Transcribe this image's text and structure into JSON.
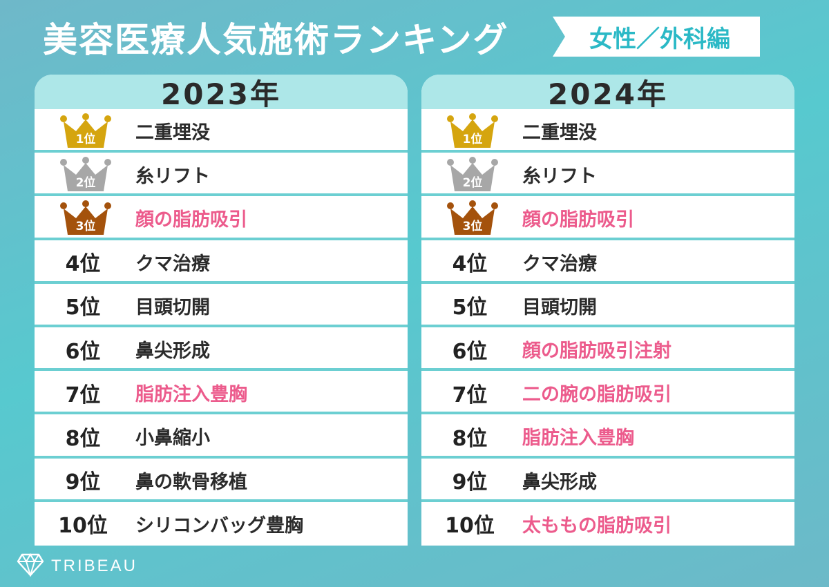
{
  "title": "美容医療人気施術ランキング",
  "category": "女性／外科編",
  "brand": "TRIBEAU",
  "colors": {
    "gold": "#d5a50f",
    "silver": "#a7a7a7",
    "bronze": "#a4520c",
    "highlight": "#ec5b8c",
    "accent": "#2bb9c6"
  },
  "rankings": [
    {
      "year": "2023年",
      "items": [
        {
          "rank": "1位",
          "name": "二重埋没",
          "crown": "gold",
          "highlight": false
        },
        {
          "rank": "2位",
          "name": "糸リフト",
          "crown": "silver",
          "highlight": false
        },
        {
          "rank": "3位",
          "name": "顔の脂肪吸引",
          "crown": "bronze",
          "highlight": true
        },
        {
          "rank": "4位",
          "name": "クマ治療",
          "crown": null,
          "highlight": false
        },
        {
          "rank": "5位",
          "name": "目頭切開",
          "crown": null,
          "highlight": false
        },
        {
          "rank": "6位",
          "name": "鼻尖形成",
          "crown": null,
          "highlight": false
        },
        {
          "rank": "7位",
          "name": "脂肪注入豊胸",
          "crown": null,
          "highlight": true
        },
        {
          "rank": "8位",
          "name": "小鼻縮小",
          "crown": null,
          "highlight": false
        },
        {
          "rank": "9位",
          "name": "鼻の軟骨移植",
          "crown": null,
          "highlight": false
        },
        {
          "rank": "10位",
          "name": "シリコンバッグ豊胸",
          "crown": null,
          "highlight": false
        }
      ]
    },
    {
      "year": "2024年",
      "items": [
        {
          "rank": "1位",
          "name": "二重埋没",
          "crown": "gold",
          "highlight": false
        },
        {
          "rank": "2位",
          "name": "糸リフト",
          "crown": "silver",
          "highlight": false
        },
        {
          "rank": "3位",
          "name": "顔の脂肪吸引",
          "crown": "bronze",
          "highlight": true
        },
        {
          "rank": "4位",
          "name": "クマ治療",
          "crown": null,
          "highlight": false
        },
        {
          "rank": "5位",
          "name": "目頭切開",
          "crown": null,
          "highlight": false
        },
        {
          "rank": "6位",
          "name": "顔の脂肪吸引注射",
          "crown": null,
          "highlight": true
        },
        {
          "rank": "7位",
          "name": "二の腕の脂肪吸引",
          "crown": null,
          "highlight": true
        },
        {
          "rank": "8位",
          "name": "脂肪注入豊胸",
          "crown": null,
          "highlight": true
        },
        {
          "rank": "9位",
          "name": "鼻尖形成",
          "crown": null,
          "highlight": false
        },
        {
          "rank": "10位",
          "name": "太ももの脂肪吸引",
          "crown": null,
          "highlight": true
        }
      ]
    }
  ]
}
